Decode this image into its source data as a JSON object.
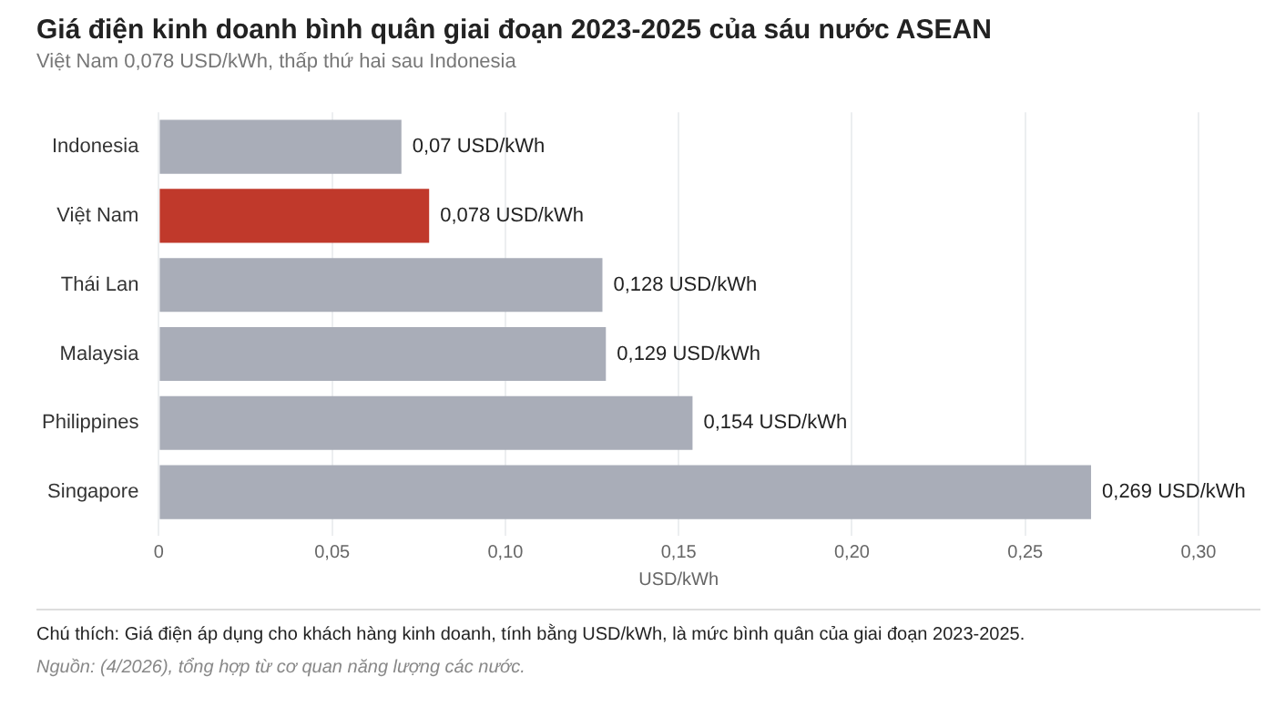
{
  "chart_data": {
    "type": "bar",
    "orientation": "horizontal",
    "title": "Giá điện kinh doanh bình quân giai đoạn 2023-2025 của sáu nước ASEAN",
    "subtitle": "Việt Nam 0,078 USD/kWh, thấp thứ hai sau Indonesia",
    "xlabel": "USD/kWh",
    "categories": [
      "Indonesia",
      "Việt Nam",
      "Thái Lan",
      "Malaysia",
      "Philippines",
      "Singapore"
    ],
    "values": [
      0.07,
      0.078,
      0.128,
      0.129,
      0.154,
      0.269
    ],
    "colors": [
      "#a9adb8",
      "#c0392b",
      "#a9adb8",
      "#a9adb8",
      "#a9adb8",
      "#a9adb8"
    ],
    "value_labels": [
      "0,07 USD/kWh",
      "0,078 USD/kWh",
      "0,128 USD/kWh",
      "0,129 USD/kWh",
      "0,154 USD/kWh",
      "0,269 USD/kWh"
    ],
    "xlim": [
      0,
      0.3
    ],
    "xticks": [
      0,
      {
        "value": 0.05,
        "label": "0,05"
      },
      {
        "value": 0.1,
        "label": "0,10"
      },
      {
        "value": 0.15,
        "label": "0,15"
      },
      {
        "value": 0.2,
        "label": "0,20"
      },
      {
        "value": 0.25,
        "label": "0,25"
      },
      {
        "value": 0.3,
        "label": "0,30"
      }
    ],
    "grid": "x",
    "legend": false,
    "annotations": [
      "Chú thích: Giá điện áp dụng cho khách hàng kinh doanh, tính bằng USD/kWh, là mức bình quân của giai đoạn 2023-2025.",
      "Nguồn: (4/2026), tổng hợp từ cơ quan năng lượng các nước."
    ]
  }
}
